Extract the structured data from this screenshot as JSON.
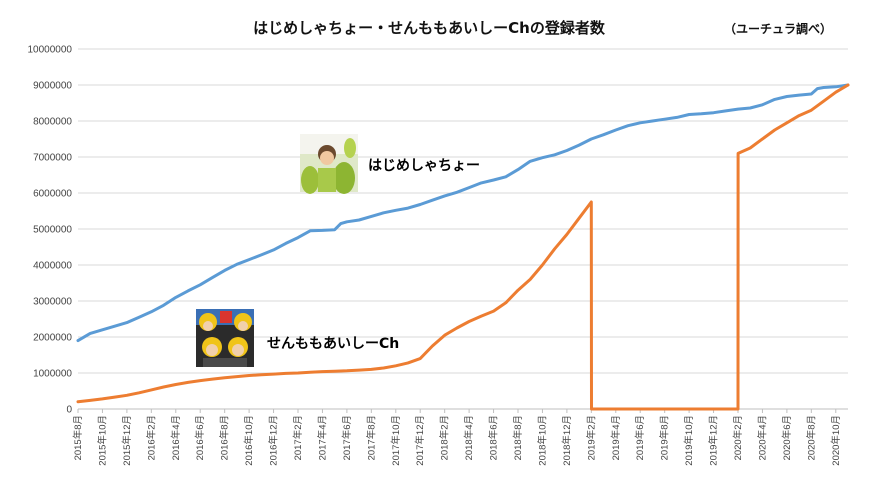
{
  "chart_data": {
    "type": "line",
    "title": "はじめしゃちょー・せんももあいしーChの登録者数",
    "note": "（ユーチュラ調べ）",
    "ylim": [
      0,
      10000000
    ],
    "yticks": [
      "0",
      "1000000",
      "2000000",
      "3000000",
      "4000000",
      "5000000",
      "6000000",
      "7000000",
      "8000000",
      "9000000",
      "10000000"
    ],
    "x_start": "2015-08",
    "x_end": "2020-11",
    "xticks": [
      {
        "month": "2015-08",
        "label": "2015年8月"
      },
      {
        "month": "2015-10",
        "label": "2015年10月"
      },
      {
        "month": "2015-12",
        "label": "2015年12月"
      },
      {
        "month": "2016-02",
        "label": "2016年2月"
      },
      {
        "month": "2016-04",
        "label": "2016年4月"
      },
      {
        "month": "2016-06",
        "label": "2016年6月"
      },
      {
        "month": "2016-08",
        "label": "2016年8月"
      },
      {
        "month": "2016-10",
        "label": "2016年10月"
      },
      {
        "month": "2016-12",
        "label": "2016年12月"
      },
      {
        "month": "2017-02",
        "label": "2017年2月"
      },
      {
        "month": "2017-04",
        "label": "2017年4月"
      },
      {
        "month": "2017-06",
        "label": "2017年6月"
      },
      {
        "month": "2017-08",
        "label": "2017年8月"
      },
      {
        "month": "2017-10",
        "label": "2017年10月"
      },
      {
        "month": "2017-12",
        "label": "2017年12月"
      },
      {
        "month": "2018-02",
        "label": "2018年2月"
      },
      {
        "month": "2018-04",
        "label": "2018年4月"
      },
      {
        "month": "2018-06",
        "label": "2018年6月"
      },
      {
        "month": "2018-08",
        "label": "2018年8月"
      },
      {
        "month": "2018-10",
        "label": "2018年10月"
      },
      {
        "month": "2018-12",
        "label": "2018年12月"
      },
      {
        "month": "2019-02",
        "label": "2019年2月"
      },
      {
        "month": "2019-04",
        "label": "2019年4月"
      },
      {
        "month": "2019-06",
        "label": "2019年6月"
      },
      {
        "month": "2019-08",
        "label": "2019年8月"
      },
      {
        "month": "2019-10",
        "label": "2019年10月"
      },
      {
        "month": "2019-12",
        "label": "2019年12月"
      },
      {
        "month": "2020-02",
        "label": "2020年2月"
      },
      {
        "month": "2020-04",
        "label": "2020年4月"
      },
      {
        "month": "2020-06",
        "label": "2020年6月"
      },
      {
        "month": "2020-08",
        "label": "2020年8月"
      },
      {
        "month": "2020-10",
        "label": "2020年10月"
      }
    ],
    "series": [
      {
        "name": "はじめしゃちょー",
        "color": "#5b9bd5",
        "points": [
          [
            "2015-08",
            1900000
          ],
          [
            "2015-09",
            2100000
          ],
          [
            "2015-10",
            2200000
          ],
          [
            "2015-11",
            2300000
          ],
          [
            "2015-12",
            2400000
          ],
          [
            "2016-01",
            2550000
          ],
          [
            "2016-02",
            2700000
          ],
          [
            "2016-03",
            2880000
          ],
          [
            "2016-04",
            3100000
          ],
          [
            "2016-05",
            3280000
          ],
          [
            "2016-06",
            3450000
          ],
          [
            "2016-07",
            3650000
          ],
          [
            "2016-08",
            3850000
          ],
          [
            "2016-09",
            4020000
          ],
          [
            "2016-10",
            4150000
          ],
          [
            "2016-11",
            4280000
          ],
          [
            "2016-12",
            4420000
          ],
          [
            "2017-01",
            4600000
          ],
          [
            "2017-02",
            4760000
          ],
          [
            "2017-03",
            4950000
          ],
          [
            "2017-04",
            4960000
          ],
          [
            "2017-05",
            4980000
          ],
          [
            "2017-05.5",
            5150000
          ],
          [
            "2017-06",
            5200000
          ],
          [
            "2017-07",
            5250000
          ],
          [
            "2017-08",
            5350000
          ],
          [
            "2017-09",
            5450000
          ],
          [
            "2017-10",
            5520000
          ],
          [
            "2017-11",
            5580000
          ],
          [
            "2017-12",
            5680000
          ],
          [
            "2018-01",
            5800000
          ],
          [
            "2018-02",
            5920000
          ],
          [
            "2018-03",
            6020000
          ],
          [
            "2018-04",
            6150000
          ],
          [
            "2018-05",
            6280000
          ],
          [
            "2018-06",
            6360000
          ],
          [
            "2018-07",
            6450000
          ],
          [
            "2018-08",
            6650000
          ],
          [
            "2018-09",
            6880000
          ],
          [
            "2018-10",
            6980000
          ],
          [
            "2018-11",
            7060000
          ],
          [
            "2018-12",
            7180000
          ],
          [
            "2019-01",
            7330000
          ],
          [
            "2019-02",
            7500000
          ],
          [
            "2019-03",
            7620000
          ],
          [
            "2019-04",
            7750000
          ],
          [
            "2019-05",
            7870000
          ],
          [
            "2019-06",
            7950000
          ],
          [
            "2019-07",
            8000000
          ],
          [
            "2019-08",
            8050000
          ],
          [
            "2019-09",
            8100000
          ],
          [
            "2019-10",
            8180000
          ],
          [
            "2019-11",
            8200000
          ],
          [
            "2019-12",
            8230000
          ],
          [
            "2020-01",
            8280000
          ],
          [
            "2020-02",
            8330000
          ],
          [
            "2020-03",
            8360000
          ],
          [
            "2020-04",
            8450000
          ],
          [
            "2020-05",
            8600000
          ],
          [
            "2020-06",
            8680000
          ],
          [
            "2020-07",
            8720000
          ],
          [
            "2020-08",
            8750000
          ],
          [
            "2020-08.5",
            8900000
          ],
          [
            "2020-09",
            8930000
          ],
          [
            "2020-10",
            8950000
          ],
          [
            "2020-11",
            9000000
          ]
        ]
      },
      {
        "name": "せんももあいしーCh",
        "color": "#ed7d31",
        "points": [
          [
            "2015-08",
            200000
          ],
          [
            "2015-09",
            240000
          ],
          [
            "2015-10",
            280000
          ],
          [
            "2015-11",
            330000
          ],
          [
            "2015-12",
            380000
          ],
          [
            "2016-01",
            450000
          ],
          [
            "2016-02",
            530000
          ],
          [
            "2016-03",
            610000
          ],
          [
            "2016-04",
            680000
          ],
          [
            "2016-05",
            740000
          ],
          [
            "2016-06",
            790000
          ],
          [
            "2016-07",
            830000
          ],
          [
            "2016-08",
            870000
          ],
          [
            "2016-09",
            900000
          ],
          [
            "2016-10",
            930000
          ],
          [
            "2016-11",
            950000
          ],
          [
            "2016-12",
            970000
          ],
          [
            "2017-01",
            990000
          ],
          [
            "2017-02",
            1000000
          ],
          [
            "2017-03",
            1020000
          ],
          [
            "2017-04",
            1040000
          ],
          [
            "2017-05",
            1050000
          ],
          [
            "2017-06",
            1060000
          ],
          [
            "2017-07",
            1080000
          ],
          [
            "2017-08",
            1100000
          ],
          [
            "2017-09",
            1140000
          ],
          [
            "2017-10",
            1200000
          ],
          [
            "2017-11",
            1280000
          ],
          [
            "2017-12",
            1400000
          ],
          [
            "2018-01",
            1750000
          ],
          [
            "2018-02",
            2050000
          ],
          [
            "2018-03",
            2250000
          ],
          [
            "2018-04",
            2430000
          ],
          [
            "2018-05",
            2580000
          ],
          [
            "2018-06",
            2720000
          ],
          [
            "2018-07",
            2950000
          ],
          [
            "2018-08",
            3300000
          ],
          [
            "2018-09",
            3600000
          ],
          [
            "2018-10",
            4000000
          ],
          [
            "2018-11",
            4450000
          ],
          [
            "2018-12",
            4850000
          ],
          [
            "2019-01",
            5300000
          ],
          [
            "2019-02",
            5750000
          ],
          [
            "2019-02.01",
            0
          ],
          [
            "2020-02",
            0
          ],
          [
            "2020-02.01",
            7100000
          ],
          [
            "2020-03",
            7250000
          ],
          [
            "2020-04",
            7500000
          ],
          [
            "2020-05",
            7750000
          ],
          [
            "2020-06",
            7950000
          ],
          [
            "2020-07",
            8150000
          ],
          [
            "2020-08",
            8300000
          ],
          [
            "2020-09",
            8550000
          ],
          [
            "2020-10",
            8800000
          ],
          [
            "2020-11",
            9000000
          ]
        ]
      }
    ]
  }
}
